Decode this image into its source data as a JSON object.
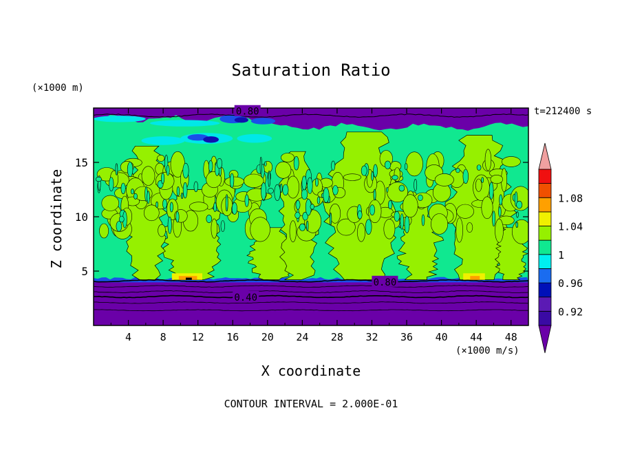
{
  "chart_data": {
    "type": "heatmap",
    "title": "Saturation Ratio",
    "xlabel": "X coordinate",
    "ylabel": "Z coordinate",
    "x_unit": "(×1000 m/s)",
    "y_unit": "(×1000 m)",
    "time_label": "t=212400 s",
    "xlim": [
      0,
      50
    ],
    "ylim": [
      0,
      20
    ],
    "x_ticks": [
      4,
      8,
      12,
      16,
      20,
      24,
      28,
      32,
      36,
      40,
      44,
      48
    ],
    "y_ticks": [
      5,
      10,
      15
    ],
    "contour_interval_text": "CONTOUR INTERVAL = 2.000E-01",
    "contour_labels": [
      {
        "text": "0.80",
        "x": 17.7,
        "z": 19.7
      },
      {
        "text": "0.80",
        "x": 33.5,
        "z": 4.0
      },
      {
        "text": "0.40",
        "x": 17.5,
        "z": 2.6
      }
    ],
    "colorbar": {
      "levels": [
        0.92,
        0.96,
        1,
        1.04,
        1.08
      ],
      "colors": [
        "#3a0aa4",
        "#5b1ab4",
        "#0010b8",
        "#1a6cf0",
        "#00f0f0",
        "#10e890",
        "#96f000",
        "#f0f000",
        "#ffa000",
        "#f05000",
        "#f01010",
        "#f0a0a0"
      ],
      "under_color": "#6a00a8",
      "over_color": "#f0a0a0"
    },
    "palette": {
      "base_purple": "#6a00a8",
      "band_purple": "#5a08a8",
      "green": "#10e890",
      "yellow_green": "#96f000",
      "cyan": "#00e8e8",
      "blue": "#1a50e8",
      "dark_blue": "#1010b0"
    }
  }
}
